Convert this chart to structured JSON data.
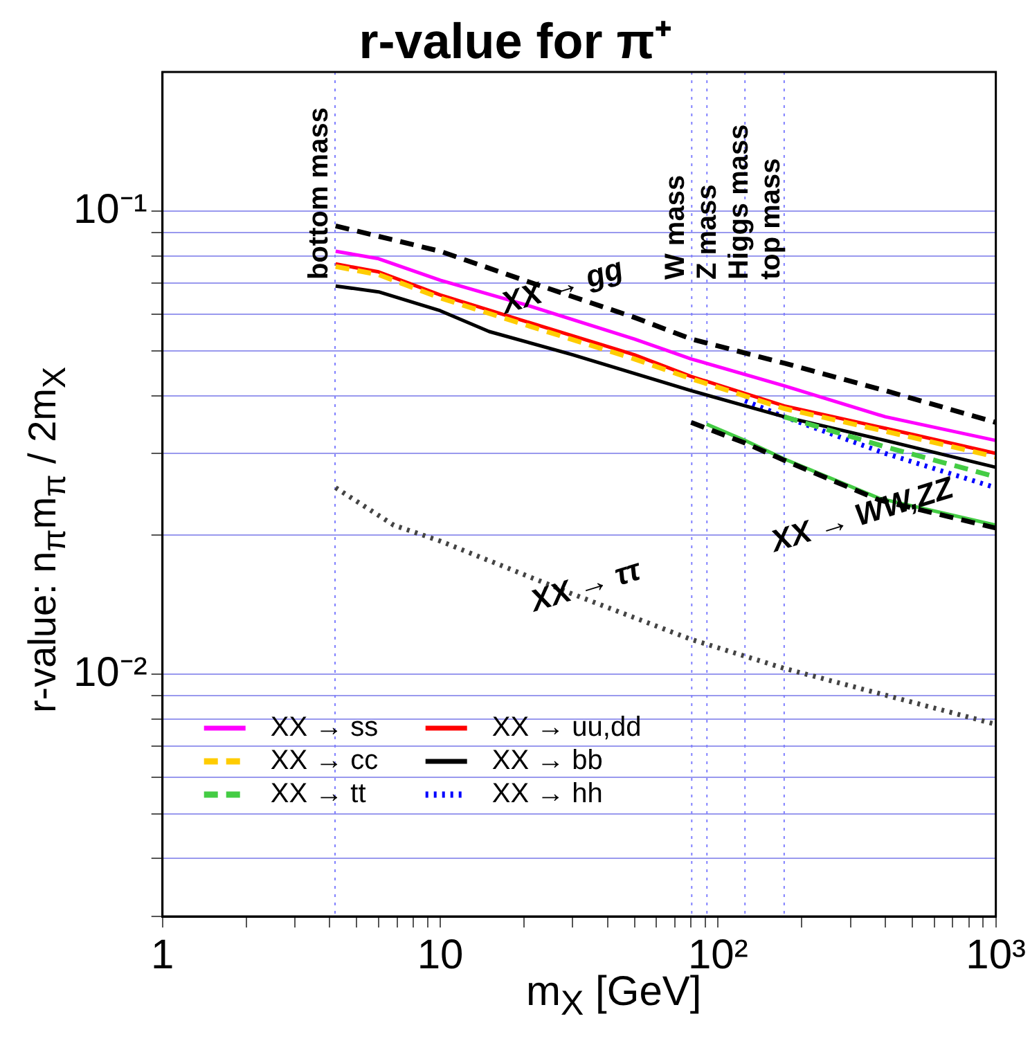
{
  "chart_data": {
    "type": "line",
    "title": "r-value for π⁺",
    "xlabel": "m$_{X}$ [GeV]",
    "ylabel": "r-value: n$_{π}$m$_{π}$ / 2m$_{X}$",
    "log": "xy",
    "grid": "y",
    "legend": "bottom left",
    "marker": "none",
    "xlim": [
      1,
      1000
    ],
    "xticks": [
      {
        "value": 1,
        "label": "1"
      },
      {
        "value": 2,
        "label": null
      },
      {
        "value": 3,
        "label": null
      },
      {
        "value": 4,
        "label": null
      },
      {
        "value": 5,
        "label": null
      },
      {
        "value": 6,
        "label": null
      },
      {
        "value": 7,
        "label": null
      },
      {
        "value": 8,
        "label": null
      },
      {
        "value": 9,
        "label": null
      },
      {
        "value": 10,
        "label": "10"
      },
      {
        "value": 20,
        "label": null
      },
      {
        "value": 30,
        "label": null
      },
      {
        "value": 40,
        "label": null
      },
      {
        "value": 50,
        "label": null
      },
      {
        "value": 60,
        "label": null
      },
      {
        "value": 70,
        "label": null
      },
      {
        "value": 80,
        "label": null
      },
      {
        "value": 90,
        "label": null
      },
      {
        "value": 100,
        "label": "10²"
      },
      {
        "value": 200,
        "label": null
      },
      {
        "value": 300,
        "label": null
      },
      {
        "value": 400,
        "label": null
      },
      {
        "value": 500,
        "label": null
      },
      {
        "value": 600,
        "label": null
      },
      {
        "value": 700,
        "label": null
      },
      {
        "value": 800,
        "label": null
      },
      {
        "value": 900,
        "label": null
      },
      {
        "value": 1000,
        "label": "10³"
      }
    ],
    "ylim": [
      0.003,
      0.2
    ],
    "yticks": [
      {
        "value": 0.003,
        "label": null
      },
      {
        "value": 0.004,
        "label": null
      },
      {
        "value": 0.005,
        "label": null
      },
      {
        "value": 0.006,
        "label": null
      },
      {
        "value": 0.007,
        "label": null
      },
      {
        "value": 0.008,
        "label": null
      },
      {
        "value": 0.009,
        "label": null
      },
      {
        "value": 0.01,
        "label": "10⁻²"
      },
      {
        "value": 0.02,
        "label": null
      },
      {
        "value": 0.03,
        "label": null
      },
      {
        "value": 0.04,
        "label": null
      },
      {
        "value": 0.05,
        "label": null
      },
      {
        "value": 0.06,
        "label": null
      },
      {
        "value": 0.07,
        "label": null
      },
      {
        "value": 0.08,
        "label": null
      },
      {
        "value": 0.09,
        "label": null
      },
      {
        "value": 0.1,
        "label": "10⁻¹"
      }
    ],
    "series": [
      {
        "name": "XX → ss",
        "color": "#ff00ff",
        "line_style": "solid",
        "x": [
          4.2,
          6,
          10,
          20,
          50,
          80,
          173,
          400,
          1000
        ],
        "values": [
          0.082,
          0.079,
          0.071,
          0.063,
          0.053,
          0.048,
          0.042,
          0.036,
          0.032
        ]
      },
      {
        "name": "XX → cc",
        "color": "#ffcc00",
        "line_style": "dashed",
        "x": [
          4.2,
          6,
          10,
          20,
          50,
          80,
          173,
          400,
          1000
        ],
        "values": [
          0.076,
          0.073,
          0.065,
          0.057,
          0.048,
          0.0435,
          0.0375,
          0.0335,
          0.0295
        ]
      },
      {
        "name": "XX → tt",
        "color": "#44cc44",
        "line_style": "dashed",
        "x": [
          173,
          400,
          1000
        ],
        "values": [
          0.036,
          0.031,
          0.0267
        ]
      },
      {
        "name": "XX → uu,dd",
        "color": "#ff0000",
        "line_style": "solid",
        "x": [
          4.2,
          6,
          10,
          20,
          50,
          80,
          173,
          400,
          1000
        ],
        "values": [
          0.077,
          0.074,
          0.066,
          0.058,
          0.049,
          0.044,
          0.038,
          0.034,
          0.03
        ]
      },
      {
        "name": "XX → bb",
        "color": "#000000",
        "line_style": "solid",
        "x": [
          4.2,
          6,
          10,
          15,
          30,
          80,
          173,
          400,
          1000
        ],
        "values": [
          0.069,
          0.067,
          0.061,
          0.055,
          0.049,
          0.041,
          0.036,
          0.032,
          0.028
        ]
      },
      {
        "name": "XX → hh",
        "color": "#0000ff",
        "line_style": "dotted",
        "x": [
          125,
          173,
          400,
          1000
        ],
        "values": [
          0.039,
          0.036,
          0.03,
          0.0253
        ]
      },
      {
        "color": "#000000",
        "line_style": "dashed",
        "x": [
          4.2,
          10,
          20,
          50,
          80,
          173,
          400,
          1000
        ],
        "values": [
          0.093,
          0.082,
          0.071,
          0.059,
          0.053,
          0.047,
          0.041,
          0.035
        ]
      },
      {
        "color": "#000000",
        "line_style": "dashed",
        "x": [
          80,
          125,
          173,
          380,
          1000
        ],
        "values": [
          0.035,
          0.0316,
          0.029,
          0.0238,
          0.0207
        ]
      },
      {
        "color": "#44cc44",
        "line_style": "solid",
        "x": [
          91,
          125,
          173,
          380,
          1000
        ],
        "values": [
          0.0347,
          0.032,
          0.0292,
          0.024,
          0.021
        ]
      },
      {
        "color": "#444444",
        "line_style": "dotted",
        "x": [
          4.2,
          6.8,
          10,
          30,
          80,
          173,
          1000
        ],
        "values": [
          0.0253,
          0.021,
          0.0194,
          0.0149,
          0.0119,
          0.0103,
          0.0078
        ]
      }
    ],
    "ref_lines": [
      {
        "axis": "x",
        "value": 4.18,
        "label": "bottom mass",
        "color": "#8080ff",
        "line_style": "dotted"
      },
      {
        "axis": "x",
        "value": 80.4,
        "label": "W mass",
        "color": "#8080ff",
        "line_style": "dotted"
      },
      {
        "axis": "x",
        "value": 91.2,
        "label": "Z mass",
        "color": "#8080ff",
        "line_style": "dotted"
      },
      {
        "axis": "x",
        "value": 125,
        "label": "Higgs mass",
        "color": "#8080ff",
        "line_style": "dotted"
      },
      {
        "axis": "x",
        "value": 173,
        "label": "top mass",
        "color": "#8080ff",
        "line_style": "dotted"
      }
    ],
    "annotations": [
      "XX → gg",
      "XX → WW,ZZ",
      "XX → ττ"
    ]
  }
}
